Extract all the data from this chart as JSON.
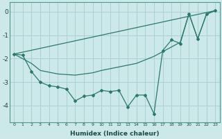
{
  "xlabel": "Humidex (Indice chaleur)",
  "background_color": "#cce8e8",
  "grid_color": "#aad0d0",
  "line_color": "#2a7a6a",
  "xlim": [
    -0.5,
    23.5
  ],
  "ylim": [
    -4.7,
    0.4
  ],
  "yticks": [
    0,
    -1,
    -2,
    -3,
    -4
  ],
  "xticks": [
    0,
    1,
    2,
    3,
    4,
    5,
    6,
    7,
    8,
    9,
    10,
    11,
    12,
    13,
    14,
    15,
    16,
    17,
    18,
    19,
    20,
    21,
    22,
    23
  ],
  "line1_x": [
    0,
    1,
    2,
    3,
    4,
    5,
    6,
    7,
    8,
    9,
    10,
    11,
    12,
    13,
    14,
    15,
    16,
    17,
    18,
    19,
    20,
    21,
    22,
    23
  ],
  "line1_y": [
    -1.8,
    -1.85,
    -2.55,
    -3.0,
    -3.15,
    -3.2,
    -3.3,
    -3.8,
    -3.6,
    -3.55,
    -3.35,
    -3.4,
    -3.35,
    -4.05,
    -3.55,
    -3.55,
    -4.35,
    -1.65,
    -1.2,
    -1.35,
    -0.08,
    -1.15,
    -0.1,
    0.05
  ],
  "line2_x": [
    0,
    23
  ],
  "line2_y": [
    -1.8,
    0.05
  ],
  "line3_x": [
    0,
    2,
    3,
    5,
    7,
    9,
    10,
    12,
    14,
    16,
    18,
    19,
    20,
    21,
    22,
    23
  ],
  "line3_y": [
    -1.8,
    -2.2,
    -2.5,
    -2.65,
    -2.7,
    -2.6,
    -2.5,
    -2.35,
    -2.2,
    -1.9,
    -1.5,
    -1.3,
    -0.08,
    -1.15,
    -0.1,
    0.05
  ]
}
